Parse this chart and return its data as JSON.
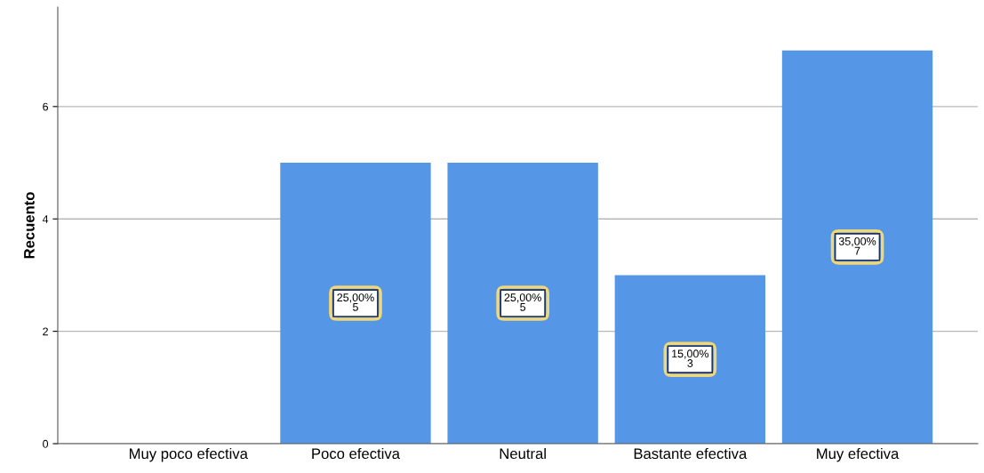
{
  "chart_data": {
    "type": "bar",
    "ylabel": "Recuento",
    "categories": [
      "Muy poco efectiva",
      "Poco efectiva",
      "Neutral",
      "Bastante efectiva",
      "Muy efectiva"
    ],
    "values": [
      0,
      5,
      5,
      3,
      7
    ],
    "value_labels": [
      null,
      "25,00%\n5",
      "25,00%\n5",
      "15,00%\n3",
      "35,00%\n7"
    ],
    "color": "#5596e6",
    "ylim": [
      0,
      7.77
    ],
    "yticks": [
      0,
      2,
      4,
      6
    ],
    "grid": "y",
    "legend": false
  }
}
